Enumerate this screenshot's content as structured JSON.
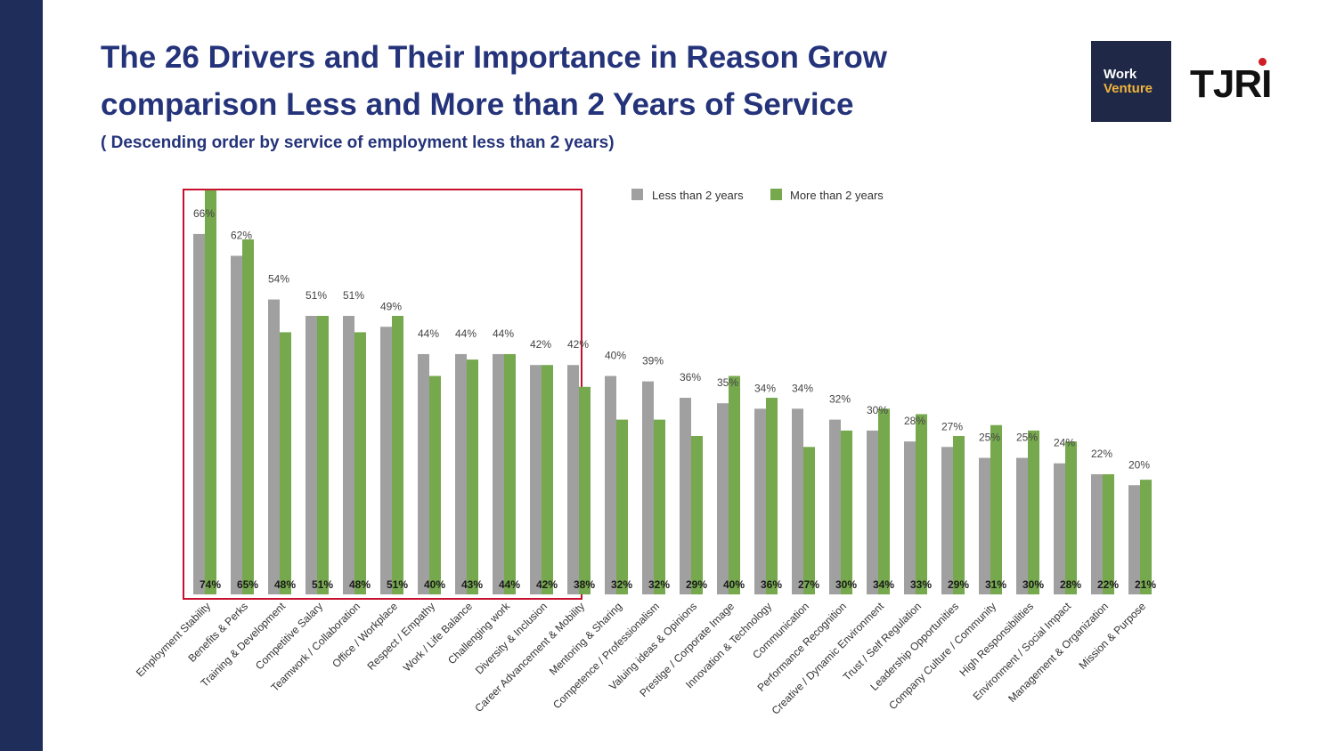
{
  "slide": {
    "title_line1": "The 26 Drivers and Their Importance in Reason Grow",
    "title_line2": "comparison Less and More than 2 Years of Service",
    "subtitle": "( Descending order by service of employment less than 2 years)"
  },
  "logos": {
    "workventure_line1": "Work",
    "workventure_line2": "Venture",
    "tjri_text": "TJRI"
  },
  "colors": {
    "accent": "#24337a",
    "sidebar": "#1f2d5a",
    "less": "#a0a0a0",
    "more": "#76a84e",
    "highlight": "#c8102e"
  },
  "chart_data": {
    "type": "bar",
    "title": "",
    "xlabel": "",
    "ylabel": "",
    "ylim": [
      0,
      80
    ],
    "legend": "top",
    "highlight_first_n": 10,
    "categories": [
      "Employment Stability",
      "Benefits & Perks",
      "Training & Development",
      "Competitive Salary",
      "Teamwork / Collaboration",
      "Office / Workplace",
      "Respect / Empathy",
      "Work / Life Balance",
      "Challenging work",
      "Diversity & Inclusion",
      "Career Advancement & Mobility",
      "Mentoring & Sharing",
      "Competence / Professionalism",
      "Valuing ideas & Opinions",
      "Prestige / Corporate Image",
      "Innovation & Technology",
      "Communication",
      "Performance Recognition",
      "Creative / Dynamic Environment",
      "Trust / Self Regulation",
      "Leadership Opportunities",
      "Company Culture / Community",
      "High Responsibilities",
      "Environment / Social Impact",
      "Management & Organization",
      "Mission & Purpose"
    ],
    "series": [
      {
        "name": "Less than 2 years",
        "values": [
          66,
          62,
          54,
          51,
          51,
          49,
          44,
          44,
          44,
          42,
          42,
          40,
          39,
          36,
          35,
          34,
          34,
          32,
          30,
          28,
          27,
          25,
          25,
          24,
          22,
          20
        ],
        "labels": [
          "66%",
          "62%",
          "54%",
          "51%",
          "51%",
          "49%",
          "44%",
          "44%",
          "44%",
          "42%",
          "42%",
          "40%",
          "39%",
          "36%",
          "35%",
          "34%",
          "34%",
          "32%",
          "30%",
          "28%",
          "27%",
          "25%",
          "25%",
          "24%",
          "22%",
          "20%"
        ]
      },
      {
        "name": "More than 2 years",
        "values": [
          74,
          65,
          48,
          51,
          48,
          51,
          40,
          43,
          44,
          42,
          38,
          32,
          32,
          29,
          40,
          36,
          27,
          30,
          34,
          33,
          29,
          31,
          30,
          28,
          22,
          21
        ],
        "labels": [
          "74%",
          "65%",
          "48%",
          "51%",
          "48%",
          "51%",
          "40%",
          "43%",
          "44%",
          "42%",
          "38%",
          "32%",
          "32%",
          "29%",
          "40%",
          "36%",
          "27%",
          "30%",
          "34%",
          "33%",
          "29%",
          "31%",
          "30%",
          "28%",
          "22%",
          "21%"
        ]
      }
    ]
  }
}
